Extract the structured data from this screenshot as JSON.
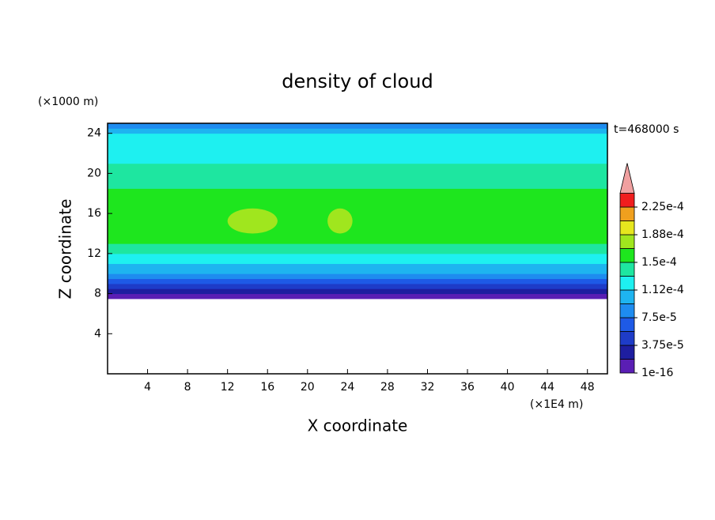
{
  "chart_data": {
    "type": "contour",
    "title": "density of cloud",
    "x_label": "X coordinate",
    "y_label": "Z coordinate",
    "x_unit": "(×1E4 m)",
    "y_unit": "(×1000 m)",
    "time_label": "t=468000 s",
    "xlim": [
      0,
      50
    ],
    "ylim": [
      0,
      25
    ],
    "xticks": [
      4,
      8,
      12,
      16,
      20,
      24,
      28,
      32,
      36,
      40,
      44,
      48
    ],
    "yticks": [
      4,
      8,
      12,
      16,
      20,
      24
    ],
    "levels": [
      1e-16,
      1.875e-05,
      3.75e-05,
      5.625e-05,
      7.5e-05,
      9.375e-05,
      0.0001125,
      0.00013125,
      0.00015,
      0.00016875,
      0.0001875,
      0.00020625,
      0.000225,
      0.00024375
    ],
    "colors": [
      "#5a1eb4",
      "#1e1ea0",
      "#1e3cc8",
      "#1e5ae6",
      "#1e8cf0",
      "#1eb4f0",
      "#1ef0f0",
      "#1ee6a0",
      "#1ee61e",
      "#a0e61e",
      "#e6e61e",
      "#f0a01e",
      "#f01e1e",
      "#f0a0a0"
    ],
    "colorbar_ticks": [
      {
        "value": 1e-16,
        "label": "1e-16"
      },
      {
        "value": 3.75e-05,
        "label": "3.75e-5"
      },
      {
        "value": 7.5e-05,
        "label": "7.5e-5"
      },
      {
        "value": 0.0001125,
        "label": "1.12e-4"
      },
      {
        "value": 0.00015,
        "label": "1.5e-4"
      },
      {
        "value": 0.0001875,
        "label": "1.88e-4"
      },
      {
        "value": 0.000225,
        "label": "2.25e-4"
      }
    ],
    "z_edges": [
      7.5,
      8,
      8.5,
      9,
      9.5,
      10,
      11,
      12,
      13,
      18.5,
      21,
      24,
      24.5,
      25
    ],
    "row_values": [
      1e-06,
      3e-05,
      4.5e-05,
      6e-05,
      8.5e-05,
      0.0001,
      0.00012,
      0.00014,
      0.00016,
      0.00014,
      0.00012,
      0.0001,
      8.5e-05
    ],
    "patches": [
      {
        "xrange": [
          12,
          17
        ],
        "zrange": [
          14,
          16.5
        ],
        "value": 0.00017
      },
      {
        "xrange": [
          22,
          24.5
        ],
        "zrange": [
          14,
          16.5
        ],
        "value": 0.00017
      }
    ]
  }
}
